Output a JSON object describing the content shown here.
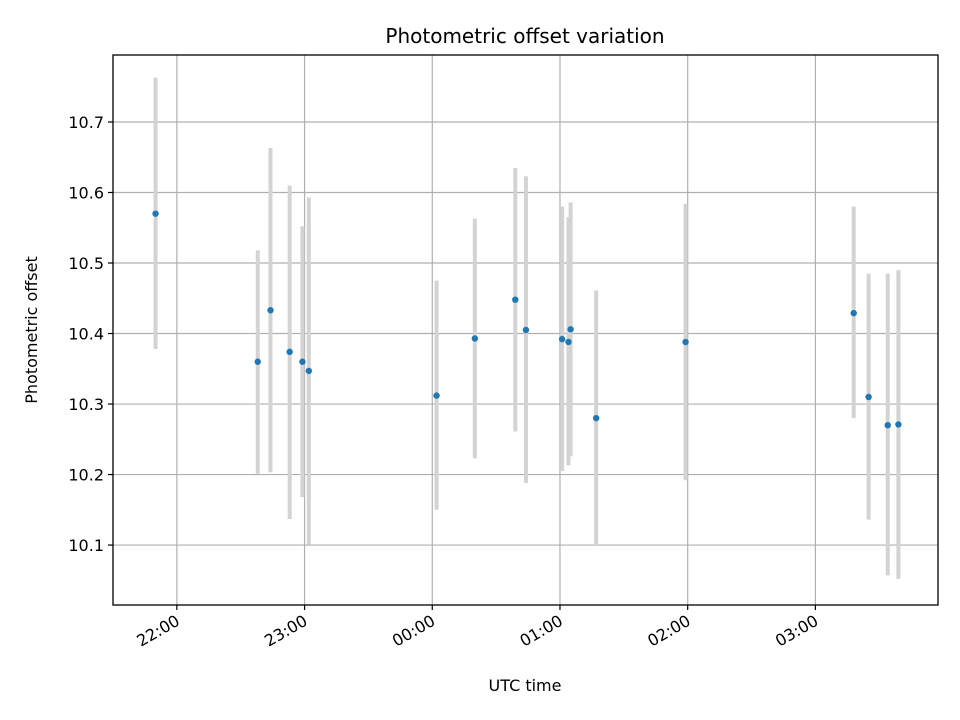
{
  "chart_data": {
    "type": "scatter",
    "title": "Photometric offset variation",
    "xlabel": "UTC time",
    "ylabel": "Photometric offset",
    "x_ticks": [
      "22:00",
      "23:00",
      "00:00",
      "01:00",
      "02:00",
      "03:00"
    ],
    "x_tick_hours": [
      22,
      23,
      24,
      25,
      26,
      27
    ],
    "xlim_hours": [
      21.5,
      27.96
    ],
    "y_ticks": [
      "10.1",
      "10.2",
      "10.3",
      "10.4",
      "10.5",
      "10.6",
      "10.7"
    ],
    "y_tick_values": [
      10.1,
      10.2,
      10.3,
      10.4,
      10.5,
      10.6,
      10.7
    ],
    "ylim": [
      10.015,
      10.795
    ],
    "grid": true,
    "colors": {
      "point": "#1f77b4",
      "errorbar": "#d3d3d3",
      "grid": "#b0b0b0"
    },
    "series": [
      {
        "points": [
          {
            "t": "21:50",
            "y": 10.57,
            "lo": 10.378,
            "hi": 10.763
          },
          {
            "t": "22:38",
            "y": 10.36,
            "lo": 10.201,
            "hi": 10.518
          },
          {
            "t": "22:44",
            "y": 10.433,
            "lo": 10.203,
            "hi": 10.663
          },
          {
            "t": "22:53",
            "y": 10.374,
            "lo": 10.137,
            "hi": 10.61
          },
          {
            "t": "22:59",
            "y": 10.36,
            "lo": 10.168,
            "hi": 10.552
          },
          {
            "t": "23:02",
            "y": 10.347,
            "lo": 10.101,
            "hi": 10.593
          },
          {
            "t": "00:02",
            "y": 10.312,
            "lo": 10.15,
            "hi": 10.475
          },
          {
            "t": "00:20",
            "y": 10.393,
            "lo": 10.223,
            "hi": 10.563
          },
          {
            "t": "00:39",
            "y": 10.448,
            "lo": 10.261,
            "hi": 10.635
          },
          {
            "t": "00:44",
            "y": 10.405,
            "lo": 10.188,
            "hi": 10.623
          },
          {
            "t": "01:01",
            "y": 10.392,
            "lo": 10.205,
            "hi": 10.58
          },
          {
            "t": "01:04",
            "y": 10.388,
            "lo": 10.213,
            "hi": 10.565
          },
          {
            "t": "01:05",
            "y": 10.406,
            "lo": 10.226,
            "hi": 10.586
          },
          {
            "t": "01:17",
            "y": 10.28,
            "lo": 10.1,
            "hi": 10.461
          },
          {
            "t": "01:59",
            "y": 10.388,
            "lo": 10.192,
            "hi": 10.584
          },
          {
            "t": "03:18",
            "y": 10.429,
            "lo": 10.28,
            "hi": 10.58
          },
          {
            "t": "03:25",
            "y": 10.31,
            "lo": 10.136,
            "hi": 10.485
          },
          {
            "t": "03:34",
            "y": 10.27,
            "lo": 10.057,
            "hi": 10.485
          },
          {
            "t": "03:39",
            "y": 10.271,
            "lo": 10.052,
            "hi": 10.49
          }
        ]
      }
    ]
  }
}
